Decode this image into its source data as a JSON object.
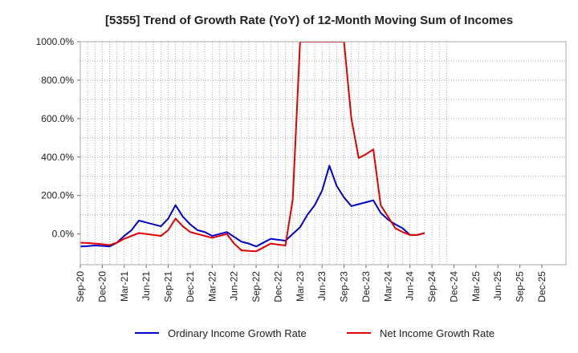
{
  "chart_data": {
    "type": "line",
    "title": "[5355]  Trend of Growth Rate (YoY) of 12-Month Moving Sum of Incomes",
    "xlabel": "",
    "ylabel": "",
    "ylim": [
      -160,
      1000
    ],
    "yticks": [
      0,
      200,
      400,
      600,
      800,
      1000
    ],
    "ytick_labels": [
      "0.0%",
      "200.0%",
      "400.0%",
      "600.0%",
      "800.0%",
      "1000.0%"
    ],
    "x_tick_labels": [
      "Sep-20",
      "Dec-20",
      "Mar-21",
      "Jun-21",
      "Sep-21",
      "Dec-21",
      "Mar-22",
      "Jun-22",
      "Sep-22",
      "Dec-22",
      "Mar-23",
      "Jun-23",
      "Sep-23",
      "Dec-23",
      "Mar-24",
      "Jun-24",
      "Sep-24",
      "Dec-24",
      "Mar-25",
      "Jun-25",
      "Sep-25",
      "Dec-25"
    ],
    "grid": true,
    "legend_position": "bottom",
    "series": [
      {
        "name": "Ordinary Income Growth Rate",
        "color": "#0000cc",
        "values": [
          -65,
          -63,
          -60,
          -62,
          -65,
          -45,
          -10,
          20,
          70,
          60,
          50,
          40,
          80,
          150,
          90,
          50,
          20,
          10,
          -10,
          0,
          10,
          -15,
          -40,
          -50,
          -65,
          -45,
          -25,
          -30,
          -35,
          0,
          35,
          100,
          150,
          225,
          355,
          250,
          190,
          145,
          155,
          165,
          175,
          110,
          75,
          50,
          30,
          -5,
          -5,
          5
        ]
      },
      {
        "name": "Net Income Growth Rate",
        "color": "#e00000",
        "values": [
          -45,
          -47,
          -50,
          -53,
          -58,
          -45,
          -25,
          -10,
          5,
          0,
          -5,
          -10,
          20,
          80,
          40,
          10,
          0,
          -10,
          -20,
          -10,
          0,
          -50,
          -85,
          -88,
          -90,
          -70,
          -50,
          -55,
          -60,
          180,
          1000,
          1000,
          1000,
          1000,
          1000,
          1000,
          1000,
          600,
          395,
          415,
          440,
          150,
          90,
          30,
          10,
          -5,
          -5,
          5
        ]
      }
    ]
  }
}
